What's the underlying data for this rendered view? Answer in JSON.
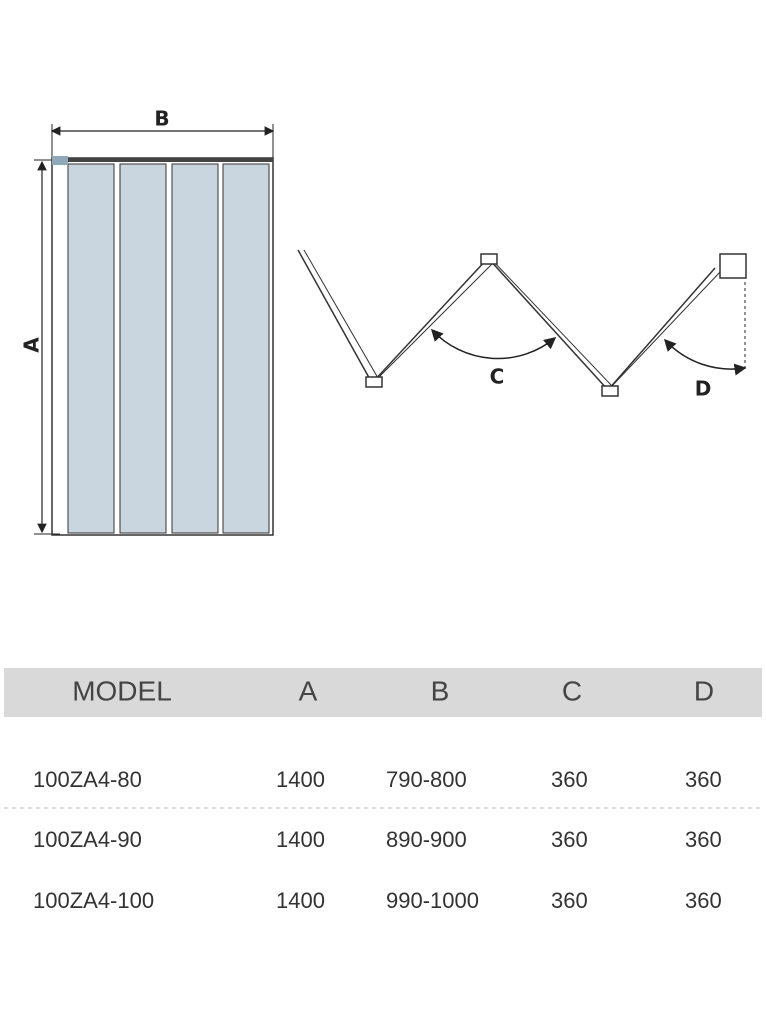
{
  "diagram": {
    "labels": {
      "a": "A",
      "b": "B",
      "c": "C",
      "d": "D"
    }
  },
  "table": {
    "header": [
      "MODEL",
      "A",
      "B",
      "C",
      "D"
    ],
    "rows": [
      [
        "100ZA4-80",
        "1400",
        "790-800",
        "360",
        "360"
      ],
      [
        "100ZA4-90",
        "1400",
        "890-900",
        "360",
        "360"
      ],
      [
        "100ZA4-100",
        "1400",
        "990-1000",
        "360",
        "360"
      ]
    ]
  }
}
